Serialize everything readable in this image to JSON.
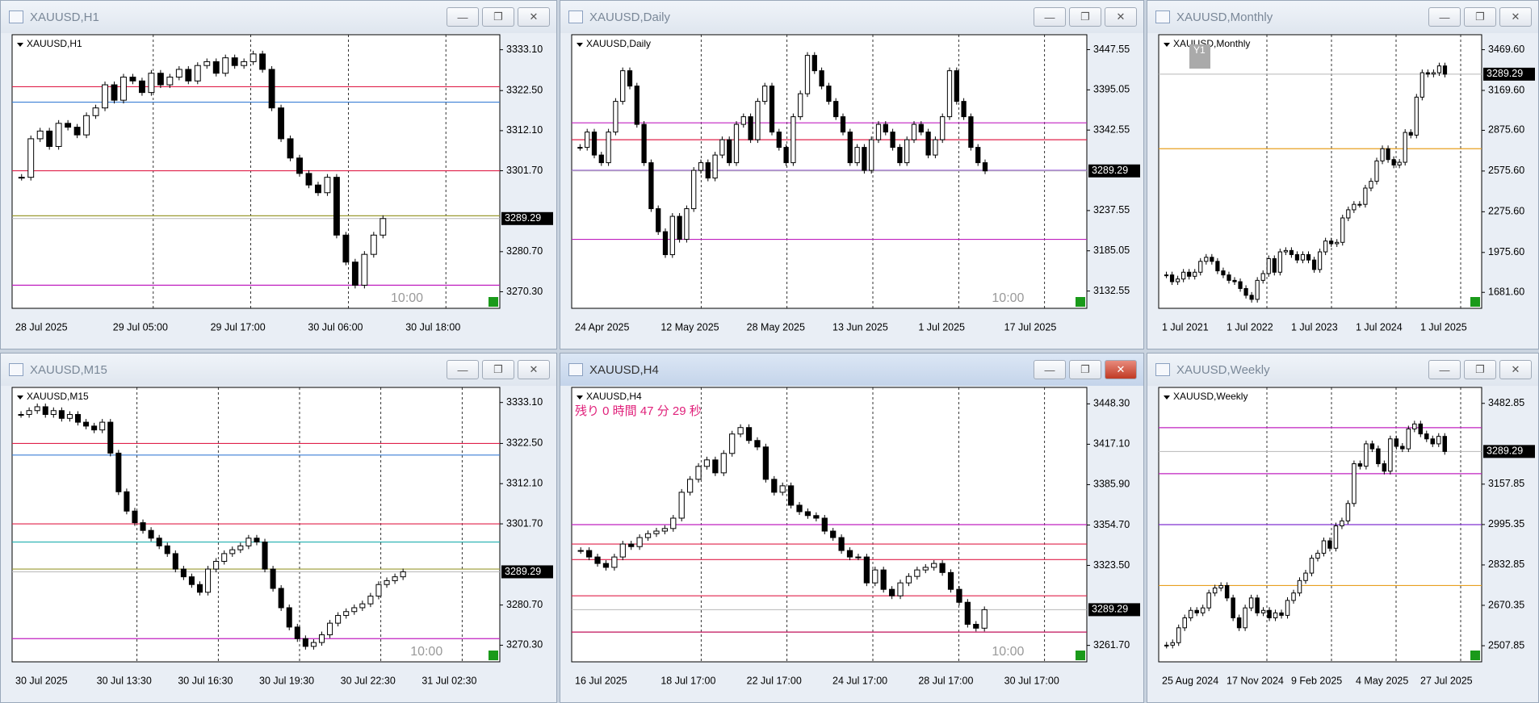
{
  "windows": [
    {
      "title": "XAUUSD,H1",
      "label": "XAUUSD,H1",
      "ylim": [
        3266,
        3337
      ],
      "yticks": [
        {
          "value": 3333.1,
          "label": "3333.10"
        },
        {
          "value": 3322.5,
          "label": "3322.50"
        },
        {
          "value": 3312.1,
          "label": "3312.10"
        },
        {
          "value": 3301.7,
          "label": "3301.70"
        },
        {
          "value": 3280.7,
          "label": "3280.70"
        },
        {
          "value": 3270.3,
          "label": "3270.30"
        }
      ],
      "xlabels": [
        "28 Jul 2025",
        "29 Jul 05:00",
        "29 Jul 17:00",
        "30 Jul 06:00",
        "30 Jul 18:00"
      ],
      "price": 3289.29,
      "timer": "10:00",
      "levels": [
        {
          "value": 3323.5,
          "color": "#e0204a"
        },
        {
          "value": 3319.5,
          "color": "#3a7fd5"
        },
        {
          "value": 3301.7,
          "color": "#e0204a"
        },
        {
          "value": 3290,
          "color": "#9a9a30"
        },
        {
          "value": 3272,
          "color": "#c020c0"
        }
      ],
      "closes": [
        3300,
        3310,
        3312,
        3308,
        3314,
        3313,
        3311,
        3316,
        3318,
        3324,
        3320,
        3326,
        3325,
        3322,
        3327,
        3324,
        3326,
        3328,
        3325,
        3329,
        3330,
        3327,
        3331,
        3329,
        3330,
        3332,
        3328,
        3318,
        3310,
        3305,
        3301,
        3298,
        3296,
        3300,
        3285,
        3278,
        3272,
        3280,
        3285,
        3289.29
      ]
    },
    {
      "title": "XAUUSD,Daily",
      "label": "XAUUSD,Daily",
      "ylim": [
        3110,
        3467
      ],
      "yticks": [
        3447.55,
        3395.05,
        3342.55,
        3237.55,
        3185.05,
        3132.55
      ],
      "xlabels": [
        "24 Apr 2025",
        "12 May 2025",
        "28 May 2025",
        "13 Jun 2025",
        "1 Jul 2025",
        "17 Jul 2025"
      ],
      "price": 3289.29,
      "timer": "10:00",
      "levels": [
        {
          "value": 3352,
          "color": "#c020c0"
        },
        {
          "value": 3330,
          "color": "#e0204a"
        },
        {
          "value": 3290,
          "color": "#8030d0"
        },
        {
          "value": 3200,
          "color": "#c020c0"
        }
      ],
      "closes": [
        3320,
        3340,
        3310,
        3300,
        3340,
        3380,
        3420,
        3400,
        3350,
        3300,
        3240,
        3210,
        3180,
        3230,
        3200,
        3240,
        3290,
        3300,
        3280,
        3310,
        3330,
        3300,
        3350,
        3360,
        3330,
        3380,
        3400,
        3340,
        3320,
        3300,
        3360,
        3390,
        3440,
        3420,
        3400,
        3380,
        3360,
        3340,
        3300,
        3320,
        3290,
        3330,
        3350,
        3340,
        3320,
        3300,
        3330,
        3350,
        3340,
        3310,
        3330,
        3360,
        3420,
        3380,
        3360,
        3320,
        3300,
        3289.29
      ]
    },
    {
      "title": "XAUUSD,Monthly",
      "label": "XAUUSD,Monthly",
      "ylim": [
        1564,
        3580
      ],
      "badge": "Y1",
      "yticks": [
        {
          "value": 3469.6,
          "label": "3469.60"
        },
        {
          "value": 3169.6,
          "label": "3169.60"
        },
        {
          "value": 2875.6,
          "label": "2875.60"
        },
        {
          "value": 2575.6,
          "label": "2575.60"
        },
        {
          "value": 2275.6,
          "label": "2275.60"
        },
        {
          "value": 1975.6,
          "label": "1975.60"
        },
        {
          "value": 1681.6,
          "label": "1681.60"
        }
      ],
      "xlabels": [
        "1 Jul 2021",
        "1 Jul 2022",
        "1 Jul 2023",
        "1 Jul 2024",
        "1 Jul 2025"
      ],
      "price": 3289.29,
      "levels": [
        {
          "value": 2740,
          "color": "#e8a020"
        }
      ],
      "closes": [
        1810,
        1760,
        1780,
        1830,
        1800,
        1830,
        1910,
        1940,
        1910,
        1840,
        1810,
        1770,
        1760,
        1710,
        1660,
        1630,
        1770,
        1820,
        1930,
        1830,
        1980,
        1990,
        1960,
        1920,
        1960,
        1920,
        1850,
        1980,
        2060,
        2040,
        2050,
        2230,
        2290,
        2330,
        2330,
        2450,
        2500,
        2650,
        2740,
        2660,
        2620,
        2640,
        2860,
        2840,
        3120,
        3300,
        3290,
        3300,
        3350,
        3289.29
      ]
    },
    {
      "title": "XAUUSD,M15",
      "label": "XAUUSD,M15",
      "ylim": [
        3266,
        3337
      ],
      "yticks": [
        {
          "value": 3333.1,
          "label": "3333.10"
        },
        {
          "value": 3322.5,
          "label": "3322.50"
        },
        {
          "value": 3312.1,
          "label": "3312.10"
        },
        {
          "value": 3301.7,
          "label": "3301.70"
        },
        {
          "value": 3280.7,
          "label": "3280.70"
        },
        {
          "value": 3270.3,
          "label": "3270.30"
        }
      ],
      "xlabels": [
        "30 Jul 2025",
        "30 Jul 13:30",
        "30 Jul 16:30",
        "30 Jul 19:30",
        "30 Jul 22:30",
        "31 Jul 02:30"
      ],
      "price": 3289.29,
      "timer": "10:00",
      "levels": [
        {
          "value": 3322.5,
          "color": "#e0204a"
        },
        {
          "value": 3319.5,
          "color": "#3a7fd5"
        },
        {
          "value": 3301.7,
          "color": "#e0204a"
        },
        {
          "value": 3297,
          "color": "#20b0b0"
        },
        {
          "value": 3290,
          "color": "#9a9a30"
        },
        {
          "value": 3272,
          "color": "#c020c0"
        }
      ],
      "closes": [
        3330,
        3331,
        3332,
        3330,
        3331,
        3329,
        3330,
        3328,
        3327,
        3326,
        3328,
        3320,
        3310,
        3305,
        3302,
        3300,
        3298,
        3296,
        3294,
        3290,
        3288,
        3286,
        3284,
        3290,
        3292,
        3294,
        3295,
        3296,
        3298,
        3297,
        3290,
        3285,
        3280,
        3275,
        3272,
        3270,
        3271,
        3273,
        3276,
        3278,
        3279,
        3280,
        3281,
        3283,
        3286,
        3287,
        3288,
        3289.29
      ]
    },
    {
      "title": "XAUUSD,H4",
      "label": "XAUUSD,H4",
      "ylim": [
        3249,
        3461
      ],
      "active": true,
      "countdown": "残り 0 時間 47 分 29 秒",
      "yticks": [
        {
          "value": 3448.3,
          "label": "3448.30"
        },
        {
          "value": 3417.1,
          "label": "3417.10"
        },
        {
          "value": 3385.9,
          "label": "3385.90"
        },
        {
          "value": 3354.7,
          "label": "3354.70"
        },
        {
          "value": 3323.5,
          "label": "3323.50"
        },
        {
          "value": 3261.7,
          "label": "3261.70"
        }
      ],
      "xlabels": [
        "16 Jul 2025",
        "18 Jul 17:00",
        "22 Jul 17:00",
        "24 Jul 17:00",
        "28 Jul 17:00",
        "30 Jul 17:00"
      ],
      "price": 3289.29,
      "timer": "10:00",
      "levels": [
        {
          "value": 3355,
          "color": "#c020c0"
        },
        {
          "value": 3340,
          "color": "#e0204a"
        },
        {
          "value": 3328,
          "color": "#e0204a"
        },
        {
          "value": 3300,
          "color": "#e0204a"
        },
        {
          "value": 3272,
          "color": "#c0105a"
        }
      ],
      "closes": [
        3335,
        3330,
        3325,
        3322,
        3330,
        3340,
        3338,
        3345,
        3348,
        3350,
        3352,
        3360,
        3380,
        3390,
        3400,
        3405,
        3395,
        3410,
        3425,
        3430,
        3420,
        3415,
        3390,
        3380,
        3385,
        3370,
        3365,
        3362,
        3360,
        3350,
        3345,
        3335,
        3330,
        3330,
        3310,
        3320,
        3305,
        3300,
        3310,
        3315,
        3320,
        3322,
        3325,
        3318,
        3305,
        3295,
        3278,
        3275,
        3289.29
      ]
    },
    {
      "title": "XAUUSD,Weekly",
      "label": "XAUUSD,Weekly",
      "ylim": [
        2443,
        3547
      ],
      "yticks": [
        3482.85,
        3157.85,
        2995.35,
        2832.85,
        2670.35,
        2507.85
      ],
      "xlabels": [
        "25 Aug 2024",
        "17 Nov 2024",
        "9 Feb 2025",
        "4 May 2025",
        "27 Jul 2025"
      ],
      "price": 3289.29,
      "levels": [
        {
          "value": 3385,
          "color": "#c020c0"
        },
        {
          "value": 3200,
          "color": "#c020c0"
        },
        {
          "value": 2995,
          "color": "#8030d0"
        },
        {
          "value": 2750,
          "color": "#e8a020"
        }
      ],
      "closes": [
        2510,
        2520,
        2580,
        2620,
        2650,
        2640,
        2660,
        2720,
        2740,
        2750,
        2700,
        2620,
        2580,
        2660,
        2700,
        2640,
        2650,
        2620,
        2640,
        2630,
        2690,
        2720,
        2770,
        2800,
        2860,
        2880,
        2930,
        2900,
        2990,
        3010,
        3080,
        3240,
        3230,
        3320,
        3300,
        3240,
        3210,
        3340,
        3310,
        3300,
        3380,
        3400,
        3360,
        3340,
        3320,
        3350,
        3289.29
      ]
    }
  ]
}
